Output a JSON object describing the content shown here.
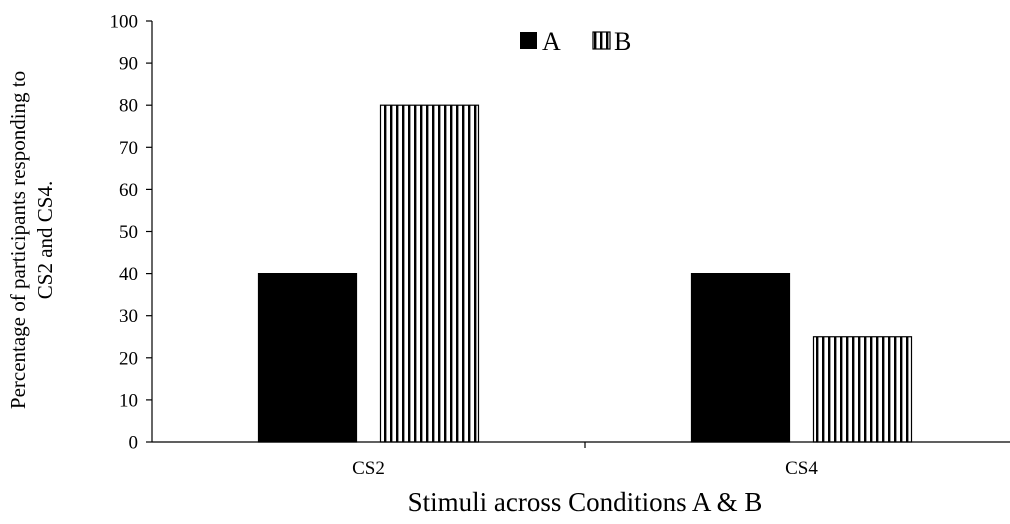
{
  "chart_data": {
    "type": "bar",
    "categories": [
      "CS2",
      "CS4"
    ],
    "series": [
      {
        "name": "A",
        "values": [
          40,
          40
        ],
        "color": "#000000",
        "pattern": "solid"
      },
      {
        "name": "B",
        "values": [
          80,
          25
        ],
        "color": "#000000",
        "pattern": "vertical-stripes"
      }
    ],
    "title": "",
    "xlabel": "Stimuli across Conditions A & B",
    "ylabel_lines": [
      "Percentage of participants responding to",
      "CS2 and CS4."
    ],
    "ylim": [
      0,
      100
    ],
    "yticks": [
      0,
      10,
      20,
      30,
      40,
      50,
      60,
      70,
      80,
      90,
      100
    ],
    "grid": false,
    "legend_position": "top-center"
  }
}
